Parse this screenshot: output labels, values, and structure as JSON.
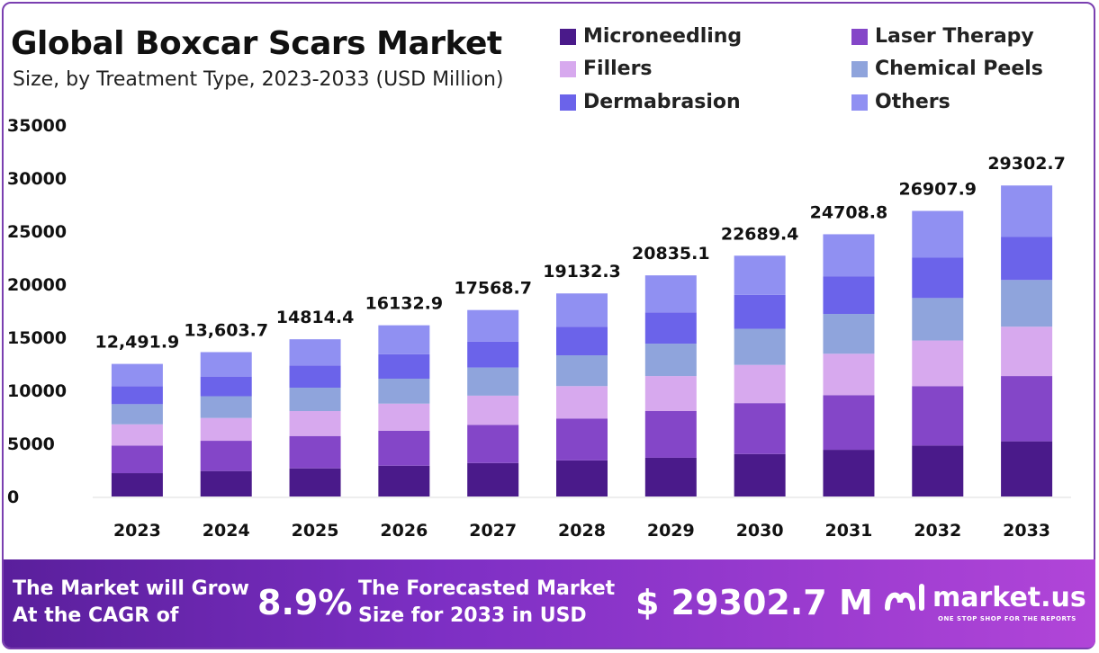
{
  "header": {
    "title": "Global Boxcar Scars Market",
    "subtitle": "Size, by Treatment Type, 2023-2033 (USD Million)"
  },
  "chart_data": {
    "type": "bar",
    "stacked": true,
    "title": "Global Boxcar Scars Market",
    "subtitle": "Size, by Treatment Type, 2023-2033 (USD Million)",
    "xlabel": "",
    "ylabel": "",
    "ylim": [
      0,
      35000
    ],
    "yticks": [
      0,
      5000,
      10000,
      15000,
      20000,
      25000,
      30000,
      35000
    ],
    "categories": [
      "2023",
      "2024",
      "2025",
      "2026",
      "2027",
      "2028",
      "2029",
      "2030",
      "2031",
      "2032",
      "2033"
    ],
    "totals": [
      12491.9,
      13603.7,
      14814.4,
      16132.9,
      17568.7,
      19132.3,
      20835.1,
      22689.4,
      24708.8,
      26907.9,
      29302.7
    ],
    "total_labels": [
      "12,491.9",
      "13,603.7",
      "14814.4",
      "16132.9",
      "17568.7",
      "19132.3",
      "20835.1",
      "22689.4",
      "24708.8",
      "26907.9",
      "29302.7"
    ],
    "series": [
      {
        "name": "Microneedling",
        "color": "#4a1a8a",
        "values": [
          2200,
          2400,
          2650,
          2900,
          3150,
          3400,
          3650,
          4000,
          4400,
          4800,
          5200
        ]
      },
      {
        "name": "Laser Therapy",
        "color": "#8446c8",
        "values": [
          2600,
          2850,
          3050,
          3300,
          3600,
          3950,
          4400,
          4800,
          5150,
          5600,
          6150
        ]
      },
      {
        "name": "Fillers",
        "color": "#d7a9ee",
        "values": [
          2000,
          2150,
          2350,
          2550,
          2750,
          3050,
          3300,
          3600,
          3900,
          4300,
          4650
        ]
      },
      {
        "name": "Chemical Peels",
        "color": "#8fa4dc",
        "values": [
          1900,
          2050,
          2200,
          2350,
          2650,
          2900,
          3050,
          3400,
          3750,
          4000,
          4400
        ]
      },
      {
        "name": "Dermabrasion",
        "color": "#6b63ea",
        "values": [
          1700,
          1850,
          2100,
          2300,
          2450,
          2700,
          2950,
          3200,
          3550,
          3800,
          4050
        ]
      },
      {
        "name": "Others",
        "color": "#9090f2",
        "values": [
          2091.9,
          2303.7,
          2464.4,
          2732.9,
          2968.7,
          3132.3,
          3485.1,
          3689.4,
          3958.8,
          4407.9,
          4852.7
        ]
      }
    ]
  },
  "footer": {
    "cagr_label_1": "The Market will Grow",
    "cagr_label_2": "At the CAGR of",
    "cagr_value": "8.9%",
    "forecast_label_1": "The Forecasted Market",
    "forecast_label_2": "Size for 2033 in USD",
    "forecast_value": "$ 29302.7 M",
    "brand_name": "market.us",
    "brand_tagline": "ONE STOP SHOP FOR THE REPORTS"
  }
}
